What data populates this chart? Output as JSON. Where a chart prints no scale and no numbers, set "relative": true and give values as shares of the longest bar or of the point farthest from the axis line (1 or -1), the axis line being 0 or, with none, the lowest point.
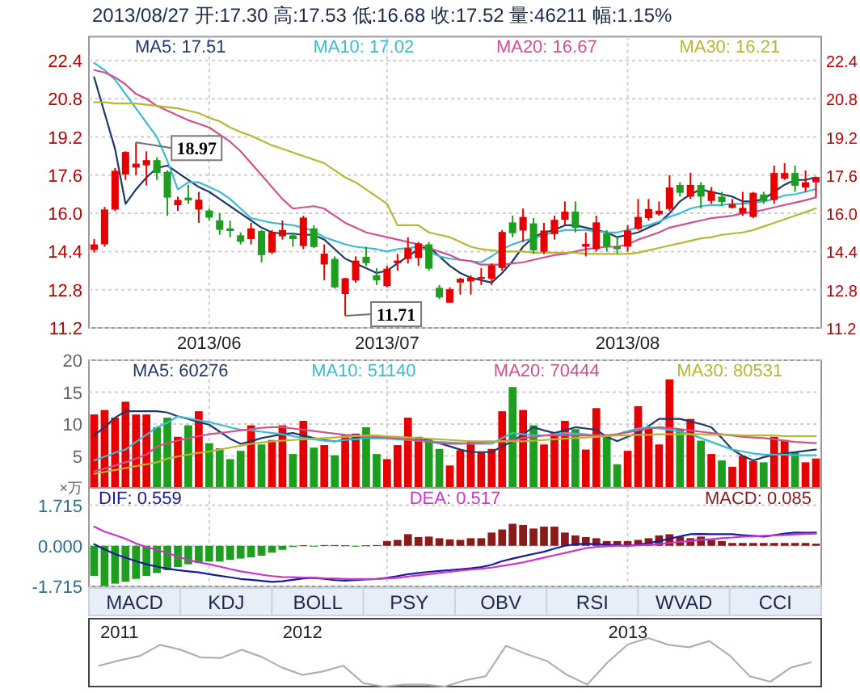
{
  "chart_data": [
    {
      "type": "candlestick",
      "title": "2013/08/27 开:17.30 高:17.53 低:16.68 收:17.52 量:46211 幅:1.15%",
      "categories": [
        null,
        null,
        null,
        null,
        null,
        null,
        null,
        null,
        null,
        null,
        null,
        "2013/06",
        null,
        null,
        null,
        null,
        null,
        null,
        null,
        null,
        null,
        null,
        null,
        null,
        null,
        null,
        null,
        null,
        "2013/07",
        null,
        null,
        null,
        null,
        null,
        null,
        null,
        null,
        null,
        null,
        null,
        null,
        null,
        null,
        null,
        null,
        null,
        null,
        null,
        null,
        null,
        null,
        "2013/08",
        null,
        null,
        null,
        null,
        null,
        null,
        null,
        null,
        null,
        null,
        null,
        null,
        null,
        null,
        null,
        null,
        null,
        null
      ],
      "ohlc": [
        [
          14.47,
          14.92,
          14.36,
          14.7
        ],
        [
          14.7,
          16.27,
          14.6,
          16.16
        ],
        [
          16.16,
          17.9,
          16.1,
          17.78
        ],
        [
          17.63,
          18.6,
          17.4,
          18.57
        ],
        [
          17.92,
          18.97,
          17.6,
          18.08
        ],
        [
          18.01,
          18.6,
          17.17,
          18.23
        ],
        [
          18.23,
          18.35,
          17.4,
          17.69
        ],
        [
          17.74,
          17.8,
          15.9,
          16.66
        ],
        [
          16.34,
          16.7,
          16.1,
          16.56
        ],
        [
          16.66,
          17.2,
          16.4,
          16.54
        ],
        [
          16.16,
          16.9,
          15.6,
          16.57
        ],
        [
          16.12,
          16.2,
          15.7,
          15.82
        ],
        [
          15.71,
          16.0,
          15.1,
          15.31
        ],
        [
          15.37,
          15.7,
          15.0,
          15.26
        ],
        [
          15.08,
          15.2,
          14.7,
          14.81
        ],
        [
          14.92,
          15.6,
          14.7,
          15.37
        ],
        [
          15.26,
          15.3,
          13.95,
          14.25
        ],
        [
          14.36,
          15.3,
          14.3,
          15.21
        ],
        [
          15.04,
          15.7,
          14.9,
          15.3
        ],
        [
          15.08,
          15.2,
          14.6,
          14.92
        ],
        [
          14.63,
          15.9,
          14.5,
          15.82
        ],
        [
          15.37,
          15.5,
          14.55,
          14.59
        ],
        [
          13.86,
          14.7,
          13.2,
          14.31
        ],
        [
          14.09,
          14.2,
          12.85,
          12.9
        ],
        [
          12.62,
          13.3,
          11.71,
          13.28
        ],
        [
          13.19,
          14.2,
          13.1,
          14.02
        ],
        [
          14.18,
          14.6,
          13.8,
          13.91
        ],
        [
          13.41,
          13.7,
          13.0,
          13.19
        ],
        [
          12.95,
          13.8,
          12.9,
          13.68
        ],
        [
          13.91,
          14.3,
          13.6,
          14.02
        ],
        [
          14.09,
          15.0,
          13.9,
          14.54
        ],
        [
          14.13,
          14.8,
          13.8,
          14.74
        ],
        [
          14.7,
          14.8,
          13.6,
          13.68
        ],
        [
          12.88,
          13.0,
          12.4,
          12.48
        ],
        [
          12.26,
          12.9,
          12.25,
          12.82
        ],
        [
          13.1,
          13.3,
          12.6,
          13.26
        ],
        [
          13.15,
          13.4,
          12.6,
          13.3
        ],
        [
          13.3,
          13.7,
          13.0,
          13.33
        ],
        [
          13.26,
          13.9,
          13.0,
          13.82
        ],
        [
          13.71,
          15.3,
          13.6,
          15.22
        ],
        [
          15.62,
          15.9,
          15.0,
          15.17
        ],
        [
          15.28,
          16.2,
          14.8,
          15.85
        ],
        [
          15.58,
          15.8,
          14.3,
          14.45
        ],
        [
          14.39,
          15.6,
          14.3,
          15.28
        ],
        [
          15.13,
          15.9,
          14.9,
          15.73
        ],
        [
          15.73,
          16.5,
          15.5,
          16.07
        ],
        [
          16.07,
          16.5,
          15.2,
          15.39
        ],
        [
          14.6,
          15.2,
          14.2,
          14.72
        ],
        [
          14.5,
          15.9,
          14.4,
          15.62
        ],
        [
          15.17,
          15.3,
          14.4,
          14.61
        ],
        [
          14.61,
          15.0,
          14.3,
          14.5
        ],
        [
          14.61,
          15.5,
          14.4,
          15.28
        ],
        [
          15.35,
          16.6,
          15.3,
          15.85
        ],
        [
          15.8,
          16.6,
          15.7,
          16.18
        ],
        [
          15.96,
          16.5,
          15.9,
          16.11
        ],
        [
          16.18,
          17.6,
          16.1,
          17.08
        ],
        [
          17.19,
          17.3,
          16.7,
          16.86
        ],
        [
          16.7,
          17.7,
          16.6,
          17.19
        ],
        [
          17.19,
          17.3,
          16.2,
          16.7
        ],
        [
          16.52,
          17.1,
          16.4,
          16.92
        ],
        [
          16.7,
          16.9,
          16.3,
          16.47
        ],
        [
          16.23,
          16.6,
          16.2,
          16.38
        ],
        [
          16.0,
          16.9,
          15.9,
          16.23
        ],
        [
          15.85,
          16.9,
          15.8,
          16.86
        ],
        [
          16.79,
          16.9,
          16.4,
          16.52
        ],
        [
          16.56,
          18.0,
          16.4,
          17.69
        ],
        [
          17.46,
          18.1,
          17.4,
          17.69
        ],
        [
          17.69,
          18.0,
          16.9,
          17.15
        ],
        [
          17.08,
          17.8,
          16.9,
          17.3
        ],
        [
          17.3,
          17.53,
          16.68,
          17.52
        ]
      ],
      "colors": [
        "#e60000",
        "#e60000",
        "#e60000",
        "#e60000",
        "#e60000",
        "#e60000",
        "#1e9e1e",
        "#1e9e1e",
        "#e60000",
        "#1e9e1e",
        "#e60000",
        "#1e9e1e",
        "#1e9e1e",
        "#1e9e1e",
        "#1e9e1e",
        "#e60000",
        "#1e9e1e",
        "#e60000",
        "#e60000",
        "#1e9e1e",
        "#e60000",
        "#1e9e1e",
        "#e60000",
        "#1e9e1e",
        "#e60000",
        "#e60000",
        "#1e9e1e",
        "#1e9e1e",
        "#e60000",
        "#e60000",
        "#e60000",
        "#e60000",
        "#1e9e1e",
        "#1e9e1e",
        "#e60000",
        "#e60000",
        "#e60000",
        "#e60000",
        "#e60000",
        "#e60000",
        "#1e9e1e",
        "#e60000",
        "#1e9e1e",
        "#e60000",
        "#e60000",
        "#e60000",
        "#1e9e1e",
        "#e60000",
        "#e60000",
        "#1e9e1e",
        "#1e9e1e",
        "#e60000",
        "#e60000",
        "#e60000",
        "#e60000",
        "#e60000",
        "#1e9e1e",
        "#e60000",
        "#1e9e1e",
        "#e60000",
        "#1e9e1e",
        "#e60000",
        "#e60000",
        "#e60000",
        "#1e9e1e",
        "#e60000",
        "#e60000",
        "#1e9e1e",
        "#e60000",
        "#e60000"
      ],
      "series": [
        {
          "type": "line",
          "name": "MA5: 17.51",
          "color": "#1f3a68",
          "values": [
            21.7,
            20.2,
            18.7,
            16.4,
            17.0,
            17.5,
            17.9,
            18.0,
            17.7,
            17.4,
            17.1,
            16.9,
            16.6,
            16.3,
            16.0,
            15.7,
            15.4,
            15.2,
            15.15,
            15.15,
            15.1,
            15.1,
            14.9,
            14.5,
            14.1,
            13.9,
            13.7,
            13.5,
            13.6,
            13.9,
            14.2,
            14.5,
            14.6,
            14.2,
            13.8,
            13.5,
            13.3,
            13.2,
            13.1,
            13.5,
            14.0,
            14.6,
            15.0,
            15.2,
            15.3,
            15.5,
            15.5,
            15.4,
            15.3,
            15.2,
            15.0,
            15.1,
            15.2,
            15.4,
            15.6,
            16.0,
            16.5,
            16.8,
            17.0,
            16.9,
            16.8,
            16.7,
            16.5,
            16.5,
            16.6,
            16.9,
            17.2,
            17.4,
            17.4,
            17.51
          ]
        },
        {
          "type": "line",
          "name": "MA10: 17.02",
          "color": "#3bbcd0",
          "values": [
            22.3,
            22.0,
            21.6,
            21.0,
            20.4,
            19.8,
            19.2,
            18.2,
            17.0,
            17.3,
            17.3,
            17.1,
            16.9,
            16.6,
            16.2,
            15.8,
            15.7,
            15.6,
            15.55,
            15.5,
            15.4,
            15.25,
            15.0,
            14.85,
            14.7,
            14.6,
            14.55,
            14.5,
            14.4,
            14.5,
            14.55,
            14.6,
            14.4,
            14.2,
            14.1,
            14.05,
            14.0,
            13.95,
            14.2,
            14.5,
            14.7,
            14.85,
            14.95,
            15.1,
            15.2,
            15.3,
            15.3,
            15.3,
            15.25,
            15.2,
            15.2,
            15.3,
            15.4,
            15.5,
            15.65,
            15.85,
            16.0,
            16.2,
            16.3,
            16.35,
            16.35,
            16.4,
            16.4,
            16.45,
            16.5,
            16.6,
            16.75,
            16.8,
            16.9,
            17.02
          ]
        },
        {
          "type": "line",
          "name": "MA20: 16.67",
          "color": "#d4508c",
          "values": [
            22.0,
            21.9,
            21.7,
            21.4,
            21.0,
            20.8,
            20.5,
            20.3,
            20.1,
            19.9,
            19.75,
            19.6,
            19.3,
            19.0,
            18.6,
            18.1,
            17.6,
            17.1,
            16.6,
            16.2,
            16.25,
            16.3,
            16.2,
            15.9,
            15.6,
            15.4,
            15.2,
            15.1,
            15.0,
            14.9,
            14.8,
            14.7,
            14.55,
            14.4,
            14.25,
            14.05,
            14.0,
            13.85,
            13.85,
            13.85,
            13.9,
            13.95,
            14.05,
            14.15,
            14.25,
            14.3,
            14.4,
            14.5,
            14.55,
            14.6,
            14.6,
            14.7,
            14.9,
            15.05,
            15.2,
            15.4,
            15.5,
            15.6,
            15.7,
            15.8,
            15.85,
            15.9,
            16.0,
            16.05,
            16.15,
            16.25,
            16.35,
            16.45,
            16.55,
            16.67
          ]
        },
        {
          "type": "line",
          "name": "MA30: 16.21",
          "color": "#b5b832",
          "values": [
            20.65,
            20.65,
            20.6,
            20.6,
            20.6,
            20.55,
            20.5,
            20.45,
            20.4,
            20.3,
            20.2,
            20.0,
            19.85,
            19.6,
            19.4,
            19.25,
            19.05,
            18.85,
            18.7,
            18.55,
            18.4,
            18.25,
            18.1,
            17.8,
            17.5,
            17.3,
            17.0,
            16.7,
            16.4,
            15.5,
            15.5,
            15.5,
            15.2,
            15.1,
            15.0,
            14.8,
            14.6,
            14.5,
            14.45,
            14.4,
            14.4,
            14.4,
            14.35,
            14.35,
            14.35,
            14.35,
            14.35,
            14.3,
            14.3,
            14.3,
            14.3,
            14.3,
            14.35,
            14.45,
            14.55,
            14.65,
            14.75,
            14.85,
            14.95,
            15.0,
            15.1,
            15.15,
            15.2,
            15.3,
            15.45,
            15.6,
            15.75,
            15.9,
            16.05,
            16.21
          ]
        }
      ],
      "ylim": [
        11.2,
        23.4
      ],
      "yticks": [
        11.2,
        12.8,
        14.4,
        {
          "value": 16,
          "label": "16.0"
        },
        17.6,
        19.2,
        20.8,
        22.4
      ],
      "y2lim": [
        11.2,
        23.4
      ],
      "y2ticks": [
        11.2,
        12.8,
        14.4,
        {
          "value": 16,
          "label": "16.0"
        },
        17.6,
        19.2,
        20.8,
        22.4
      ],
      "grid": true,
      "legend": "top",
      "annotations": [
        "18.97",
        "11.71"
      ]
    },
    {
      "type": "bar",
      "ylabel": "×万",
      "tick_labels": "y",
      "grid": true,
      "legend": "top",
      "categories": [
        null,
        null,
        null,
        null,
        null,
        null,
        null,
        null,
        null,
        null,
        null,
        "2013/06",
        null,
        null,
        null,
        null,
        null,
        null,
        null,
        null,
        null,
        null,
        null,
        null,
        null,
        null,
        null,
        null,
        "2013/07",
        null,
        null,
        null,
        null,
        null,
        null,
        null,
        null,
        null,
        null,
        null,
        null,
        null,
        null,
        null,
        null,
        null,
        null,
        null,
        null,
        null,
        null,
        "2013/08",
        null,
        null,
        null,
        null,
        null,
        null,
        null,
        null,
        null,
        null,
        null,
        null,
        null,
        null,
        null,
        null,
        null,
        null
      ],
      "ylim": [
        0,
        20
      ],
      "yticks": [
        5,
        10,
        15,
        20
      ],
      "series": [
        {
          "type": "bar",
          "values": [
            11.5,
            12.2,
            11,
            13.5,
            11.5,
            11.5,
            9.5,
            11,
            8,
            9.8,
            12,
            7,
            6.2,
            4.5,
            5.8,
            9.8,
            6.8,
            7.5,
            9.8,
            5.3,
            10.5,
            6.3,
            6.7,
            5.1,
            8.2,
            8.5,
            9.5,
            5.3,
            4.5,
            6.7,
            11,
            8.0,
            7.7,
            6.1,
            3.5,
            5.9,
            7.2,
            5.7,
            6.1,
            12,
            15.8,
            12.2,
            9.8,
            6.8,
            8.7,
            10.5,
            9.2,
            6,
            12.5,
            8.4,
            3.7,
            5.8,
            12.8,
            9.3,
            6.8,
            17,
            9.2,
            10.8,
            7.4,
            5.3,
            4.3,
            3.3,
            5,
            4.2,
            4,
            8,
            7.5,
            5.6,
            4,
            4.6
          ],
          "colors": [
            "#e60000",
            "#e60000",
            "#e60000",
            "#e60000",
            "#e60000",
            "#e60000",
            "#1e9e1e",
            "#1e9e1e",
            "#e60000",
            "#1e9e1e",
            "#e60000",
            "#1e9e1e",
            "#1e9e1e",
            "#1e9e1e",
            "#1e9e1e",
            "#e60000",
            "#1e9e1e",
            "#e60000",
            "#e60000",
            "#1e9e1e",
            "#e60000",
            "#1e9e1e",
            "#e60000",
            "#1e9e1e",
            "#e60000",
            "#e60000",
            "#1e9e1e",
            "#1e9e1e",
            "#e60000",
            "#e60000",
            "#e60000",
            "#e60000",
            "#1e9e1e",
            "#1e9e1e",
            "#e60000",
            "#e60000",
            "#e60000",
            "#e60000",
            "#e60000",
            "#e60000",
            "#1e9e1e",
            "#e60000",
            "#1e9e1e",
            "#e60000",
            "#e60000",
            "#e60000",
            "#1e9e1e",
            "#e60000",
            "#e60000",
            "#1e9e1e",
            "#1e9e1e",
            "#e60000",
            "#e60000",
            "#e60000",
            "#e60000",
            "#e60000",
            "#1e9e1e",
            "#e60000",
            "#1e9e1e",
            "#e60000",
            "#1e9e1e",
            "#e60000",
            "#e60000",
            "#e60000",
            "#1e9e1e",
            "#e60000",
            "#e60000",
            "#1e9e1e",
            "#e60000",
            "#e60000"
          ]
        },
        {
          "type": "line",
          "name": "MA5: 60276",
          "color": "#1f3a68",
          "values": [
            8.2,
            9.5,
            11,
            12,
            12,
            12,
            12,
            11.8,
            11.2,
            10.8,
            10.3,
            9.9,
            8.8,
            7.7,
            6.9,
            7.3,
            7.8,
            8.1,
            8.4,
            8.6,
            8.2,
            7.8,
            7.5,
            7.3,
            7.5,
            7.8,
            7.8,
            7.8,
            7.8,
            7.8,
            7.8,
            7.8,
            7.4,
            7.0,
            6.5,
            6.0,
            5.6,
            5.6,
            5.6,
            6.5,
            7.3,
            8.4,
            9.5,
            9.0,
            8.6,
            9.0,
            9.5,
            9.3,
            9.1,
            8.0,
            7.3,
            8.0,
            8.6,
            9.7,
            10.8,
            10.8,
            10.8,
            10.4,
            10.0,
            9.5,
            7.8,
            6.0,
            5.0,
            4.3,
            4.8,
            5.2,
            5.4,
            5.6,
            5.8,
            6.0
          ]
        },
        {
          "type": "line",
          "name": "MA10: 51140",
          "color": "#3bbcd0",
          "values": [
            4.3,
            4.9,
            5.5,
            6.0,
            7.2,
            8.3,
            9.5,
            10.2,
            11.2,
            10.9,
            10.6,
            10.3,
            9.9,
            9.5,
            9.1,
            9.0,
            8.8,
            8.6,
            8.4,
            8.1,
            7.8,
            7.6,
            7.4,
            7.3,
            7.5,
            7.6,
            7.8,
            7.8,
            7.7,
            7.6,
            7.5,
            7.4,
            7.3,
            7.2,
            7.1,
            7.0,
            6.9,
            6.9,
            6.9,
            7.8,
            8.6,
            8.4,
            8.2,
            8.2,
            8.4,
            8.6,
            8.5,
            8.4,
            8.2,
            8.2,
            8.4,
            8.9,
            9.3,
            9.5,
            9.3,
            9.1,
            8.8,
            8.4,
            7.8,
            7.2,
            6.6,
            6.0,
            5.7,
            5.4,
            5.2,
            5.2,
            5.2,
            5.1,
            5.1,
            5.1
          ]
        },
        {
          "type": "line",
          "name": "MA20: 70444",
          "color": "#d4508c",
          "values": [
            2.6,
            3.0,
            3.5,
            4.0,
            4.6,
            5.2,
            6.5,
            7.0,
            7.4,
            7.8,
            8.1,
            8.4,
            8.6,
            8.8,
            9.0,
            9.2,
            9.4,
            9.5,
            9.5,
            9.3,
            9.1,
            8.9,
            8.7,
            8.5,
            8.3,
            8.2,
            8.1,
            8.0,
            7.9,
            7.8,
            7.6,
            7.4,
            7.2,
            7.0,
            6.9,
            6.9,
            7.0,
            7.1,
            7.2,
            7.3,
            7.5,
            7.8,
            8.0,
            8.2,
            8.2,
            8.2,
            8.2,
            8.2,
            8.2,
            8.2,
            8.4,
            8.7,
            9.0,
            9.3,
            9.5,
            9.4,
            9.2,
            9.0,
            8.8,
            8.6,
            8.4,
            8.2,
            8.0,
            7.9,
            7.8,
            7.6,
            7.4,
            7.2,
            7.1,
            7.0
          ]
        },
        {
          "type": "line",
          "name": "MA30: 80531",
          "color": "#b5b832",
          "values": [
            2.2,
            2.5,
            2.8,
            3.1,
            3.4,
            3.7,
            4.0,
            4.6,
            4.9,
            5.2,
            5.5,
            5.7,
            6.0,
            6.3,
            6.6,
            6.9,
            7.1,
            7.3,
            7.4,
            7.5,
            7.6,
            7.7,
            7.8,
            7.9,
            8.0,
            8.1,
            8.2,
            8.2,
            8.1,
            8.0,
            7.9,
            7.8,
            7.7,
            7.6,
            7.5,
            7.4,
            7.3,
            7.3,
            7.3,
            7.3,
            7.3,
            7.3,
            7.4,
            7.5,
            7.6,
            7.7,
            7.8,
            7.9,
            8.0,
            8.1,
            8.2,
            8.2,
            8.3,
            8.3,
            8.4,
            8.4,
            8.4,
            8.4,
            8.4,
            8.3,
            8.3,
            8.3,
            8.2,
            8.2,
            8.2,
            8.2,
            8.1,
            8.1,
            8.1,
            8.1
          ]
        }
      ]
    },
    {
      "type": "bar",
      "tick_labels": "y",
      "grid": true,
      "legend": "top",
      "categories": [
        null,
        null,
        null,
        null,
        null,
        null,
        null,
        null,
        null,
        null,
        null,
        "2013/06",
        null,
        null,
        null,
        null,
        null,
        null,
        null,
        null,
        null,
        null,
        null,
        null,
        null,
        null,
        null,
        null,
        "2013/07",
        null,
        null,
        null,
        null,
        null,
        null,
        null,
        null,
        null,
        null,
        null,
        null,
        null,
        null,
        null,
        null,
        null,
        null,
        null,
        null,
        null,
        null,
        "2013/08",
        null,
        null,
        null,
        null,
        null,
        null,
        null,
        null,
        null,
        null,
        null,
        null,
        null,
        null,
        null,
        null,
        null,
        null
      ],
      "ylim": [
        -1.715,
        2.45
      ],
      "yticks": [
        1.715,
        {
          "value": 0,
          "label": "0.000"
        },
        -1.715
      ],
      "series": [
        {
          "type": "line",
          "name": "DIF: 0.559",
          "color": "#1a1a9c",
          "values": [
            0.07,
            -0.15,
            -0.35,
            -0.5,
            -0.65,
            -0.78,
            -0.88,
            -0.97,
            -1.03,
            -1.08,
            -1.12,
            -1.2,
            -1.27,
            -1.33,
            -1.4,
            -1.44,
            -1.48,
            -1.52,
            -1.5,
            -1.44,
            -1.38,
            -1.35,
            -1.4,
            -1.45,
            -1.47,
            -1.45,
            -1.42,
            -1.4,
            -1.35,
            -1.28,
            -1.2,
            -1.15,
            -1.1,
            -1.06,
            -1.03,
            -0.99,
            -0.95,
            -0.9,
            -0.8,
            -0.65,
            -0.54,
            -0.44,
            -0.34,
            -0.25,
            -0.12,
            0.0,
            0.07,
            0.08,
            0.07,
            0.05,
            0.02,
            0.0,
            0.05,
            0.12,
            0.2,
            0.3,
            0.4,
            0.49,
            0.5,
            0.49,
            0.49,
            0.49,
            0.45,
            0.42,
            0.39,
            0.45,
            0.52,
            0.56,
            0.55,
            0.56
          ]
        },
        {
          "type": "line",
          "name": "DEA: 0.517",
          "color": "#cc33cc",
          "values": [
            0.81,
            0.6,
            0.45,
            0.3,
            0.1,
            -0.05,
            -0.17,
            -0.3,
            -0.45,
            -0.6,
            -0.7,
            -0.78,
            -0.88,
            -0.98,
            -1.08,
            -1.15,
            -1.22,
            -1.28,
            -1.32,
            -1.33,
            -1.34,
            -1.35,
            -1.37,
            -1.38,
            -1.4,
            -1.4,
            -1.4,
            -1.4,
            -1.38,
            -1.35,
            -1.3,
            -1.25,
            -1.2,
            -1.15,
            -1.1,
            -1.05,
            -1.0,
            -0.97,
            -0.92,
            -0.85,
            -0.78,
            -0.7,
            -0.6,
            -0.5,
            -0.4,
            -0.3,
            -0.2,
            -0.1,
            -0.05,
            -0.02,
            0.0,
            0.0,
            0.02,
            0.05,
            0.07,
            0.12,
            0.17,
            0.2,
            0.25,
            0.28,
            0.32,
            0.35,
            0.39,
            0.4,
            0.42,
            0.44,
            0.46,
            0.48,
            0.5,
            0.52
          ]
        },
        {
          "type": "bar",
          "name": "MACD: 0.085",
          "color": "#8b1a1a",
          "values": [
            -1.27,
            -1.7,
            -1.6,
            -1.52,
            -1.4,
            -1.27,
            -1.15,
            -1.03,
            -0.9,
            -0.78,
            -0.73,
            -0.66,
            -0.66,
            -0.59,
            -0.54,
            -0.49,
            -0.42,
            -0.29,
            -0.17,
            -0.05,
            0.02,
            -0.02,
            0.03,
            0.03,
            0.02,
            -0.02,
            0.02,
            0.03,
            0.2,
            0.25,
            0.49,
            0.37,
            0.39,
            0.32,
            0.27,
            0.25,
            0.32,
            0.32,
            0.56,
            0.69,
            0.93,
            0.88,
            0.73,
            0.81,
            0.81,
            0.56,
            0.44,
            0.37,
            0.32,
            0.2,
            0.2,
            0.2,
            0.25,
            0.32,
            0.44,
            0.49,
            0.39,
            0.32,
            0.39,
            0.25,
            0.2,
            0.12,
            0.12,
            0.12,
            0.12,
            0.12,
            0.12,
            0.12,
            0.12,
            0.09
          ],
          "colors": [
            "#1e9e1e",
            "#1e9e1e",
            "#1e9e1e",
            "#1e9e1e",
            "#1e9e1e",
            "#1e9e1e",
            "#1e9e1e",
            "#1e9e1e",
            "#1e9e1e",
            "#1e9e1e",
            "#1e9e1e",
            "#1e9e1e",
            "#1e9e1e",
            "#1e9e1e",
            "#1e9e1e",
            "#1e9e1e",
            "#1e9e1e",
            "#1e9e1e",
            "#1e9e1e",
            "#1e9e1e",
            "#8b1a1a",
            "#1e9e1e",
            "#8b1a1a",
            "#8b1a1a",
            "#8b1a1a",
            "#1e9e1e",
            "#8b1a1a",
            "#8b1a1a",
            "#8b1a1a",
            "#8b1a1a",
            "#8b1a1a",
            "#8b1a1a",
            "#8b1a1a",
            "#8b1a1a",
            "#8b1a1a",
            "#8b1a1a",
            "#8b1a1a",
            "#8b1a1a",
            "#8b1a1a",
            "#8b1a1a",
            "#8b1a1a",
            "#8b1a1a",
            "#8b1a1a",
            "#8b1a1a",
            "#8b1a1a",
            "#8b1a1a",
            "#8b1a1a",
            "#8b1a1a",
            "#8b1a1a",
            "#8b1a1a",
            "#8b1a1a",
            "#8b1a1a",
            "#8b1a1a",
            "#8b1a1a",
            "#8b1a1a",
            "#8b1a1a",
            "#8b1a1a",
            "#8b1a1a",
            "#8b1a1a",
            "#8b1a1a",
            "#8b1a1a",
            "#8b1a1a",
            "#8b1a1a",
            "#8b1a1a",
            "#8b1a1a",
            "#8b1a1a",
            "#8b1a1a",
            "#8b1a1a",
            "#8b1a1a",
            "#8b1a1a"
          ]
        }
      ]
    },
    {
      "type": "other",
      "annotations": [
        "MACD",
        "KDJ",
        "BOLL",
        "PSY",
        "OBV",
        "RSI",
        "WVAD",
        "CCI"
      ]
    },
    {
      "type": "line",
      "relative": true,
      "color": "#b0b0b0",
      "tick_labels": "x",
      "categories": [
        null,
        "2011",
        null,
        null,
        null,
        null,
        null,
        null,
        null,
        null,
        "2012",
        null,
        null,
        null,
        null,
        null,
        null,
        null,
        null,
        null,
        null,
        null,
        null,
        null,
        null,
        null,
        "2013",
        null,
        null,
        null,
        null,
        null,
        null,
        null,
        null,
        null
      ],
      "values": [
        0.43,
        0.54,
        0.63,
        0.86,
        0.76,
        0.6,
        0.59,
        0.76,
        0.61,
        0.39,
        0.24,
        0.31,
        0.43,
        0.07,
        0,
        0.04,
        0.04,
        0,
        0.13,
        0.21,
        0.84,
        0.67,
        0.53,
        0.24,
        0.04,
        0.5,
        0.87,
        1,
        0.86,
        0.81,
        0.94,
        0.64,
        0.21,
        0.1,
        0.39,
        0.5
      ]
    }
  ]
}
